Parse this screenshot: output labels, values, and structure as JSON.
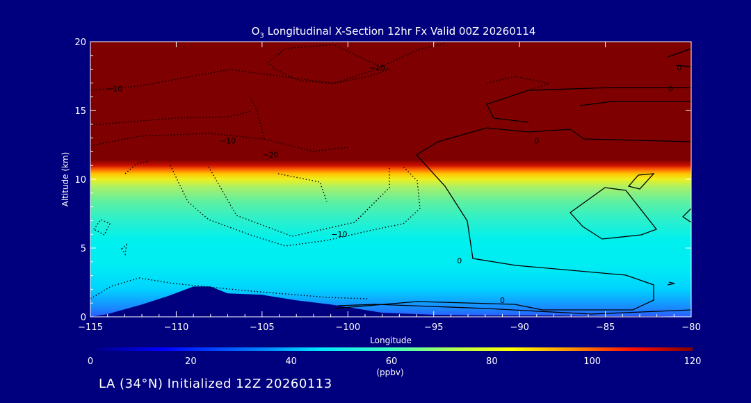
{
  "chart_data": {
    "type": "heatmap",
    "title": "O₃ Longitudinal X-Section 12hr  Fx Valid 00Z 20260114",
    "title_prefix": "O",
    "title_subscript": "3",
    "title_suffix": " Longitudinal X-Section 12hr  Fx Valid 00Z 20260114",
    "xlabel": "Longitude",
    "ylabel": "Altitude (km)",
    "xlim": [
      -115,
      -80
    ],
    "ylim": [
      0,
      20
    ],
    "x_ticks": [
      -115,
      -110,
      -105,
      -100,
      -95,
      -90,
      -85,
      -80
    ],
    "x_tick_labels": [
      "−115",
      "−110",
      "−105",
      "−100",
      "−95",
      "−90",
      "−85",
      "−80"
    ],
    "y_ticks": [
      0,
      5,
      10,
      15,
      20
    ],
    "y_tick_labels": [
      "0",
      "5",
      "10",
      "15",
      "20"
    ],
    "colorbar": {
      "label": "(ppbv)",
      "range": [
        0,
        120
      ],
      "ticks": [
        0,
        20,
        40,
        60,
        80,
        100,
        120
      ],
      "tick_labels": [
        "0",
        "20",
        "40",
        "60",
        "80",
        "100",
        "120"
      ]
    },
    "tropopause_km": {
      "x": [
        -115,
        -110,
        -105,
        -100,
        -95,
        -90,
        -85,
        -80
      ],
      "z": [
        10.9,
        11.0,
        11.1,
        10.9,
        11.2,
        11.1,
        11.2,
        11.3
      ]
    },
    "terrain_km": {
      "x": [
        -115,
        -114,
        -112,
        -110.5,
        -109,
        -108,
        -107,
        -105,
        -103,
        -101,
        -99,
        -98,
        -97,
        -96,
        -95,
        -92,
        -88,
        -85,
        -82,
        -80
      ],
      "z": [
        0,
        0.2,
        0.9,
        1.5,
        2.2,
        2.2,
        1.7,
        1.6,
        1.2,
        0.9,
        0.5,
        0.3,
        0.25,
        0.2,
        0.15,
        0.1,
        0.1,
        0.05,
        0.05,
        0
      ]
    },
    "contour_labels": [
      {
        "text": "−10",
        "lon": -113.6,
        "alt": 16.6
      },
      {
        "text": "−10",
        "lon": -107.0,
        "alt": 12.8
      },
      {
        "text": "−20",
        "lon": -104.5,
        "alt": 11.8
      },
      {
        "text": "−10",
        "lon": -98.3,
        "alt": 18.1
      },
      {
        "text": "−10",
        "lon": -100.5,
        "alt": 6.0
      },
      {
        "text": "0",
        "lon": -89.0,
        "alt": 12.8
      },
      {
        "text": "0",
        "lon": -81.2,
        "alt": 16.6
      },
      {
        "text": "0",
        "lon": -80.7,
        "alt": 18.1
      },
      {
        "text": "0",
        "lon": -93.5,
        "alt": 4.1
      },
      {
        "text": "0",
        "lon": -91.0,
        "alt": 1.2
      }
    ]
  },
  "footer": {
    "label": "LA (34°N) Initialized 12Z 20260113"
  },
  "colors": {
    "background": "#00007f",
    "stratosphere": "#7f0000",
    "terrain": "#00007f",
    "contour": "#000000"
  }
}
